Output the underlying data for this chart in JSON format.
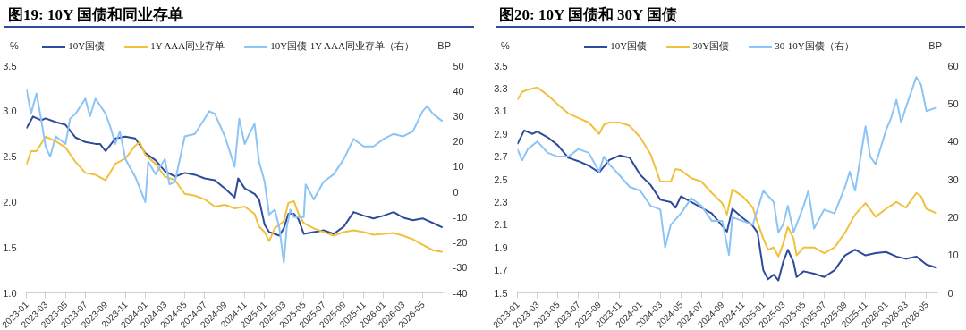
{
  "chart_data": [
    {
      "type": "line",
      "title": "图19: 10Y 国债和同业存单",
      "ylabel": "%",
      "y2label": "BP",
      "legend": "top",
      "xlim": [
        "2023-01-01",
        "2026-07-03"
      ],
      "xticks": [
        "2023-01",
        "2023-03",
        "2023-05",
        "2023-07",
        "2023-09",
        "2023-11",
        "2024-01",
        "2024-03",
        "2024-05",
        "2024-07",
        "2024-09",
        "2024-11",
        "2025-01",
        "2025-03",
        "2025-05",
        "2025-07",
        "2025-09",
        "2025-11",
        "2026-01",
        "2026-03",
        "2026-05"
      ],
      "ylim": [
        1.0,
        3.5
      ],
      "yticks": [
        {
          "value": 1.0,
          "label": "1.0"
        },
        1.5,
        {
          "value": 2.0,
          "label": "2.0"
        },
        2.5,
        {
          "value": 3.0,
          "label": "3.0"
        },
        3.5
      ],
      "y2lim": [
        -40,
        50
      ],
      "y2ticks": [
        -40,
        -30,
        -20,
        -10,
        0,
        10,
        20,
        30,
        40,
        50
      ],
      "series": [
        {
          "name": "10Y国债",
          "color": "#2e4b9b",
          "x": [
            "2023-01-01",
            "2023-01-21",
            "2023-02-15",
            "2023-03-01",
            "2023-04-01",
            "2023-05-01",
            "2023-06-01",
            "2023-07-01",
            "2023-08-01",
            "2023-08-15",
            "2023-09-01",
            "2023-10-01",
            "2023-11-01",
            "2023-12-01",
            "2024-01-01",
            "2024-02-01",
            "2024-03-01",
            "2024-04-01",
            "2024-05-01",
            "2024-06-01",
            "2024-07-01",
            "2024-08-01",
            "2024-09-01",
            "2024-10-01",
            "2024-10-12",
            "2024-11-01",
            "2024-12-01",
            "2024-12-15",
            "2025-01-01",
            "2025-01-15",
            "2025-02-01",
            "2025-02-15",
            "2025-03-01",
            "2025-03-15",
            "2025-04-01",
            "2025-04-15",
            "2025-05-01",
            "2025-06-01",
            "2025-07-01",
            "2025-08-01",
            "2025-09-01",
            "2025-10-01",
            "2025-11-01",
            "2025-12-01",
            "2026-01-01",
            "2026-02-01",
            "2026-03-01",
            "2026-04-01",
            "2026-05-01",
            "2026-06-01",
            "2026-07-01"
          ],
          "values": [
            2.81,
            2.94,
            2.9,
            2.92,
            2.88,
            2.85,
            2.71,
            2.66,
            2.64,
            2.64,
            2.56,
            2.7,
            2.72,
            2.7,
            2.54,
            2.46,
            2.34,
            2.28,
            2.32,
            2.3,
            2.26,
            2.24,
            2.15,
            2.05,
            2.26,
            2.15,
            2.09,
            2.03,
            1.75,
            1.67,
            1.65,
            1.63,
            1.71,
            1.87,
            1.87,
            1.81,
            1.65,
            1.67,
            1.69,
            1.65,
            1.73,
            1.89,
            1.85,
            1.82,
            1.85,
            1.89,
            1.83,
            1.8,
            1.82,
            1.77,
            1.72
          ]
        },
        {
          "name": "1Y AAA同业存单",
          "color": "#f0c13c",
          "x": [
            "2023-01-01",
            "2023-01-15",
            "2023-02-01",
            "2023-03-01",
            "2023-04-01",
            "2023-05-01",
            "2023-06-01",
            "2023-07-01",
            "2023-08-01",
            "2023-09-01",
            "2023-10-01",
            "2023-11-01",
            "2023-12-01",
            "2023-12-15",
            "2024-01-01",
            "2024-02-01",
            "2024-03-01",
            "2024-04-01",
            "2024-05-01",
            "2024-06-01",
            "2024-07-01",
            "2024-08-01",
            "2024-09-01",
            "2024-10-01",
            "2024-11-01",
            "2024-12-01",
            "2024-12-15",
            "2025-01-01",
            "2025-01-15",
            "2025-02-01",
            "2025-03-01",
            "2025-03-15",
            "2025-04-01",
            "2025-04-15",
            "2025-05-01",
            "2025-06-01",
            "2025-07-01",
            "2025-08-01",
            "2025-09-01",
            "2025-10-01",
            "2025-11-01",
            "2025-12-01",
            "2026-01-01",
            "2026-02-01",
            "2026-03-01",
            "2026-04-01",
            "2026-05-01",
            "2026-06-01",
            "2026-07-01"
          ],
          "values": [
            2.41,
            2.56,
            2.56,
            2.72,
            2.67,
            2.6,
            2.44,
            2.32,
            2.3,
            2.24,
            2.42,
            2.48,
            2.62,
            2.66,
            2.52,
            2.42,
            2.28,
            2.24,
            2.09,
            2.07,
            2.03,
            1.95,
            1.97,
            1.93,
            1.95,
            1.87,
            1.73,
            1.67,
            1.57,
            1.71,
            1.79,
            1.99,
            2.01,
            1.87,
            1.77,
            1.71,
            1.67,
            1.63,
            1.67,
            1.69,
            1.67,
            1.64,
            1.65,
            1.66,
            1.63,
            1.59,
            1.53,
            1.47,
            1.45
          ]
        },
        {
          "name": "10Y国债-1Y AAA同业存单（右）",
          "color": "#8cc4f5",
          "axis": "y2",
          "x": [
            "2023-01-01",
            "2023-01-15",
            "2023-02-01",
            "2023-02-15",
            "2023-03-01",
            "2023-03-15",
            "2023-04-01",
            "2023-05-01",
            "2023-05-15",
            "2023-06-01",
            "2023-07-01",
            "2023-07-15",
            "2023-08-01",
            "2023-09-01",
            "2023-09-15",
            "2023-10-01",
            "2023-10-15",
            "2023-11-01",
            "2023-12-01",
            "2024-01-01",
            "2024-01-10",
            "2024-02-01",
            "2024-03-01",
            "2024-03-15",
            "2024-04-01",
            "2024-05-01",
            "2024-06-01",
            "2024-07-01",
            "2024-07-15",
            "2024-08-01",
            "2024-09-01",
            "2024-10-01",
            "2024-10-15",
            "2024-11-01",
            "2024-11-15",
            "2024-12-01",
            "2024-12-15",
            "2025-01-01",
            "2025-01-15",
            "2025-02-01",
            "2025-02-15",
            "2025-03-01",
            "2025-03-10",
            "2025-03-21",
            "2025-04-01",
            "2025-05-01",
            "2025-05-07",
            "2025-06-01",
            "2025-07-01",
            "2025-08-01",
            "2025-09-01",
            "2025-10-01",
            "2025-11-01",
            "2025-12-01",
            "2026-01-01",
            "2026-02-01",
            "2026-03-01",
            "2026-04-01",
            "2026-05-01",
            "2026-05-15",
            "2026-06-01",
            "2026-07-01"
          ],
          "values": [
            41,
            31,
            39,
            29,
            18,
            14,
            22,
            19,
            29,
            31,
            37,
            30,
            37,
            31,
            26,
            19,
            24,
            13,
            6,
            -4,
            12,
            7,
            13,
            3,
            4,
            22,
            23,
            29,
            32,
            31,
            22,
            10,
            29,
            19,
            23,
            27,
            12,
            4,
            -9,
            -7,
            -14,
            -28,
            -14,
            -7,
            -10,
            -10,
            3,
            -3,
            4,
            7,
            13,
            21,
            18,
            18,
            21,
            23,
            22,
            24,
            32,
            34,
            31,
            28
          ]
        }
      ]
    },
    {
      "type": "line",
      "title": "图20: 10Y 国债和 30Y 国债",
      "ylabel": "%",
      "y2label": "BP",
      "legend": "top",
      "xlim": [
        "2023-01-01",
        "2026-06-04"
      ],
      "xticks": [
        "2023-01",
        "2023-03",
        "2023-05",
        "2023-07",
        "2023-09",
        "2023-11",
        "2024-01",
        "2024-03",
        "2024-05",
        "2024-07",
        "2024-09",
        "2024-11",
        "2025-01",
        "2025-03",
        "2025-05",
        "2025-07",
        "2025-09",
        "2025-11",
        "2026-01",
        "2026-03",
        "2026-05"
      ],
      "ylim": [
        1.5,
        3.5
      ],
      "yticks": [
        1.5,
        1.7,
        1.9,
        2.1,
        2.3,
        2.5,
        2.7,
        2.9,
        3.1,
        3.3,
        3.5
      ],
      "y2lim": [
        0,
        60
      ],
      "y2ticks": [
        0,
        10,
        20,
        30,
        40,
        50,
        60
      ],
      "series": [
        {
          "name": "10Y国债",
          "color": "#2e4b9b",
          "x": [
            "2023-01-01",
            "2023-01-21",
            "2023-02-15",
            "2023-03-01",
            "2023-04-01",
            "2023-05-01",
            "2023-06-01",
            "2023-07-01",
            "2023-08-01",
            "2023-09-01",
            "2023-10-01",
            "2023-11-01",
            "2023-12-01",
            "2024-01-01",
            "2024-02-01",
            "2024-03-01",
            "2024-04-01",
            "2024-04-15",
            "2024-05-01",
            "2024-06-01",
            "2024-07-01",
            "2024-08-01",
            "2024-09-01",
            "2024-09-15",
            "2024-10-01",
            "2024-11-01",
            "2024-12-01",
            "2024-12-15",
            "2025-01-01",
            "2025-01-15",
            "2025-02-01",
            "2025-02-15",
            "2025-03-01",
            "2025-03-15",
            "2025-04-01",
            "2025-04-10",
            "2025-05-01",
            "2025-06-01",
            "2025-07-01",
            "2025-08-01",
            "2025-09-01",
            "2025-10-01",
            "2025-11-01",
            "2025-12-01",
            "2026-01-01",
            "2026-02-01",
            "2026-03-01",
            "2026-04-01",
            "2026-05-01",
            "2026-06-01"
          ],
          "values": [
            2.81,
            2.93,
            2.9,
            2.92,
            2.87,
            2.8,
            2.69,
            2.66,
            2.62,
            2.56,
            2.67,
            2.71,
            2.69,
            2.54,
            2.45,
            2.32,
            2.3,
            2.25,
            2.35,
            2.3,
            2.25,
            2.2,
            2.09,
            2.04,
            2.24,
            2.16,
            2.09,
            2.03,
            1.7,
            1.62,
            1.66,
            1.61,
            1.77,
            1.88,
            1.77,
            1.64,
            1.69,
            1.67,
            1.64,
            1.7,
            1.83,
            1.88,
            1.83,
            1.85,
            1.86,
            1.82,
            1.8,
            1.82,
            1.75,
            1.72
          ]
        },
        {
          "name": "30Y国债",
          "color": "#f0c13c",
          "x": [
            "2023-01-01",
            "2023-01-15",
            "2023-02-01",
            "2023-03-01",
            "2023-04-01",
            "2023-05-01",
            "2023-06-01",
            "2023-07-01",
            "2023-08-01",
            "2023-09-01",
            "2023-09-15",
            "2023-10-01",
            "2023-11-01",
            "2023-12-01",
            "2024-01-01",
            "2024-02-01",
            "2024-03-01",
            "2024-04-01",
            "2024-04-15",
            "2024-05-01",
            "2024-06-01",
            "2024-07-01",
            "2024-08-01",
            "2024-09-01",
            "2024-09-15",
            "2024-10-01",
            "2024-11-01",
            "2024-12-01",
            "2024-12-15",
            "2025-01-01",
            "2025-01-15",
            "2025-02-01",
            "2025-02-15",
            "2025-03-01",
            "2025-03-15",
            "2025-04-01",
            "2025-04-10",
            "2025-05-01",
            "2025-06-01",
            "2025-07-01",
            "2025-08-01",
            "2025-09-01",
            "2025-10-01",
            "2025-11-01",
            "2025-12-01",
            "2026-01-01",
            "2026-02-01",
            "2026-03-01",
            "2026-04-01",
            "2026-04-15",
            "2026-05-01",
            "2026-06-01"
          ],
          "values": [
            3.2,
            3.27,
            3.29,
            3.31,
            3.24,
            3.16,
            3.08,
            3.04,
            3.0,
            2.9,
            2.98,
            3.0,
            3.0,
            2.97,
            2.87,
            2.72,
            2.48,
            2.48,
            2.59,
            2.58,
            2.51,
            2.48,
            2.38,
            2.29,
            2.19,
            2.41,
            2.35,
            2.25,
            2.12,
            1.98,
            1.88,
            1.9,
            1.82,
            1.93,
            2.08,
            1.98,
            1.83,
            1.9,
            1.9,
            1.85,
            1.9,
            2.03,
            2.19,
            2.29,
            2.17,
            2.24,
            2.3,
            2.25,
            2.38,
            2.35,
            2.24,
            2.2
          ]
        },
        {
          "name": "30-10Y国债（右）",
          "color": "#8cc4f5",
          "axis": "y2",
          "x": [
            "2023-01-01",
            "2023-01-15",
            "2023-02-01",
            "2023-03-01",
            "2023-04-01",
            "2023-05-01",
            "2023-06-01",
            "2023-07-01",
            "2023-08-01",
            "2023-09-01",
            "2023-09-15",
            "2023-10-01",
            "2023-11-01",
            "2023-12-01",
            "2024-01-01",
            "2024-02-01",
            "2024-03-01",
            "2024-03-15",
            "2024-04-01",
            "2024-05-01",
            "2024-06-01",
            "2024-07-01",
            "2024-08-01",
            "2024-09-01",
            "2024-09-21",
            "2024-10-01",
            "2024-11-01",
            "2024-12-01",
            "2025-01-01",
            "2025-02-01",
            "2025-02-15",
            "2025-03-01",
            "2025-03-15",
            "2025-04-01",
            "2025-05-01",
            "2025-05-15",
            "2025-06-01",
            "2025-07-01",
            "2025-08-01",
            "2025-09-01",
            "2025-09-15",
            "2025-10-01",
            "2025-11-01",
            "2025-11-15",
            "2025-12-01",
            "2026-01-01",
            "2026-01-15",
            "2026-02-01",
            "2026-02-15",
            "2026-03-01",
            "2026-04-01",
            "2026-04-15",
            "2026-05-01",
            "2026-06-01"
          ],
          "values": [
            38,
            35,
            38,
            40,
            37,
            36,
            36,
            38,
            37,
            32,
            36,
            34,
            31,
            28,
            27,
            23,
            22,
            12,
            18,
            21,
            25,
            23,
            19,
            19,
            10,
            20,
            19,
            18,
            27,
            24,
            16,
            18,
            23,
            16,
            23,
            27,
            17,
            22,
            21,
            28,
            32,
            27,
            44,
            36,
            34,
            43,
            46,
            51,
            45,
            49,
            57,
            55,
            48,
            49
          ]
        }
      ]
    }
  ]
}
